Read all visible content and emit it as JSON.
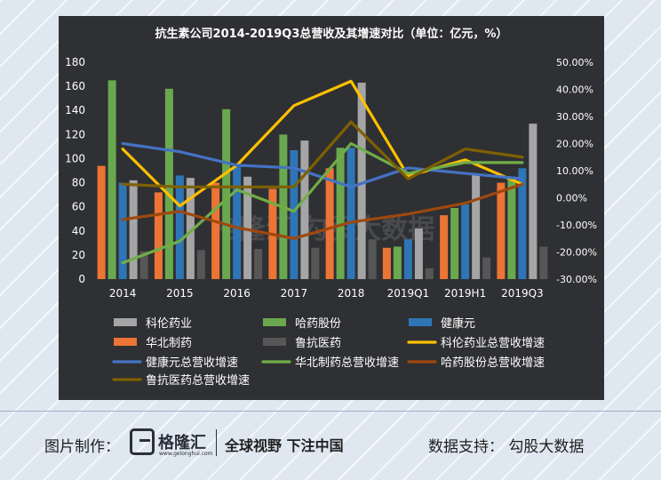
{
  "footer": {
    "made_by_label": "图片制作：",
    "logo_name": "格隆汇",
    "logo_url": "www.gelonghui.com",
    "slogan": "全球视野 下注中国",
    "data_support": "数据支持： 勾股大数据"
  },
  "watermark": "格隆汇 勾股大数据",
  "chart_data": {
    "type": "bar+line",
    "title": "抗生素公司2014-2019Q3总营收及其增速对比（单位：亿元，%）",
    "categories": [
      "2014",
      "2015",
      "2016",
      "2017",
      "2018",
      "2019Q1",
      "2019H1",
      "2019Q3"
    ],
    "y_left": {
      "min": 0,
      "max": 180,
      "step": 20
    },
    "y_right": {
      "min": -30,
      "max": 50,
      "step": 10,
      "unit": "%"
    },
    "grid": false,
    "legend_position": "bottom",
    "bar_series": [
      {
        "name": "华北制药",
        "color": "#ec7434",
        "values": [
          94,
          72,
          80,
          75,
          92,
          26,
          53,
          80
        ]
      },
      {
        "name": "哈药股份",
        "color": "#6aa84f",
        "values": [
          165,
          158,
          141,
          120,
          109,
          27,
          59,
          85
        ]
      },
      {
        "name": "健康元",
        "color": "#2e75b6",
        "values": [
          80,
          86,
          93,
          107,
          109,
          33,
          62,
          92
        ]
      },
      {
        "name": "科伦药业",
        "color": "#a5a5a5",
        "values": [
          82,
          84,
          85,
          115,
          163,
          42,
          87,
          129
        ]
      },
      {
        "name": "鲁抗医药",
        "color": "#565656",
        "values": [
          23,
          24,
          25,
          26,
          33,
          9,
          18,
          27
        ]
      }
    ],
    "line_series": [
      {
        "name": "科伦药业总营收增速",
        "color": "#ffc000",
        "values": [
          18,
          -3,
          12,
          34,
          43,
          8,
          14,
          5
        ]
      },
      {
        "name": "健康元总营收增速",
        "color": "#4472c4",
        "values": [
          20,
          17,
          12,
          11,
          4,
          11,
          9,
          7
        ]
      },
      {
        "name": "华北制药总营收增速",
        "color": "#70ad47",
        "values": [
          -24,
          -16,
          3,
          -5,
          20,
          9,
          13,
          13
        ]
      },
      {
        "name": "哈药股份总营收增速",
        "color": "#9e480e",
        "values": [
          -8,
          -5,
          -11,
          -15,
          -9,
          -6,
          -2,
          5
        ]
      },
      {
        "name": "鲁抗医药总营收增速",
        "color": "#7f6000",
        "values": [
          5,
          4,
          4,
          4,
          28,
          7,
          18,
          15
        ]
      }
    ],
    "legend": [
      {
        "name": "科伦药业",
        "kind": "bar",
        "color": "#a5a5a5"
      },
      {
        "name": "哈药股份",
        "kind": "bar",
        "color": "#6aa84f"
      },
      {
        "name": "健康元",
        "kind": "bar",
        "color": "#2e75b6"
      },
      {
        "name": "华北制药",
        "kind": "bar",
        "color": "#ec7434"
      },
      {
        "name": "鲁抗医药",
        "kind": "bar",
        "color": "#565656"
      },
      {
        "name": "科伦药业总营收增速",
        "kind": "line",
        "color": "#ffc000"
      },
      {
        "name": "健康元总营收增速",
        "kind": "line",
        "color": "#4472c4"
      },
      {
        "name": "华北制药总营收增速",
        "kind": "line",
        "color": "#70ad47"
      },
      {
        "name": "哈药股份总营收增速",
        "kind": "line",
        "color": "#9e480e"
      },
      {
        "name": "鲁抗医药总营收增速",
        "kind": "line",
        "color": "#7f6000"
      }
    ]
  }
}
